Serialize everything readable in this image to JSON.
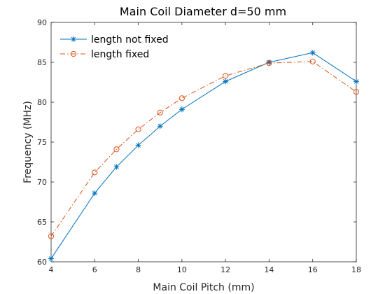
{
  "chart_data": {
    "type": "line",
    "title": "Main Coil Diameter d=50 mm",
    "xlabel": "Main Coil Pitch (mm)",
    "ylabel": "Frequency (MHz)",
    "xlim": [
      4,
      18
    ],
    "ylim": [
      60,
      90
    ],
    "xticks": [
      4,
      6,
      8,
      10,
      12,
      14,
      16,
      18
    ],
    "yticks": [
      60,
      65,
      70,
      75,
      80,
      85,
      90
    ],
    "grid": false,
    "legend": "top-left",
    "x": [
      4,
      6,
      7,
      8,
      9,
      10,
      12,
      14,
      16,
      18
    ],
    "series": [
      {
        "name": "length not fixed",
        "color": "#0072BD",
        "marker": "asterisk",
        "line_style": "solid",
        "values": [
          60.4,
          68.6,
          71.9,
          74.6,
          77.0,
          79.1,
          82.6,
          85.0,
          86.2,
          82.6
        ]
      },
      {
        "name": "length fixed",
        "color": "#D95319",
        "marker": "circle",
        "line_style": "dash-dot",
        "values": [
          63.2,
          71.2,
          74.1,
          76.6,
          78.7,
          80.5,
          83.3,
          84.9,
          85.1,
          81.3
        ]
      }
    ]
  }
}
